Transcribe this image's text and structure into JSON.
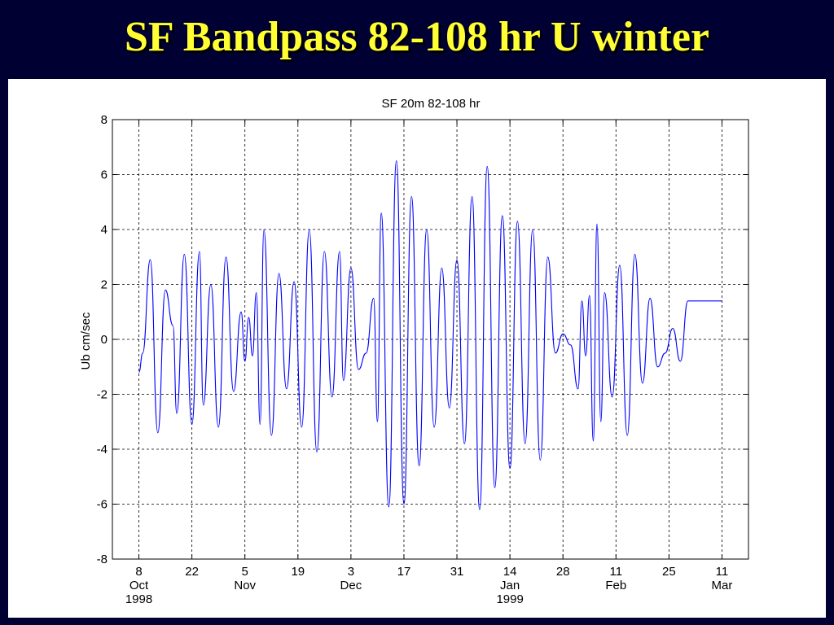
{
  "slide": {
    "title": "SF Bandpass 82-108 hr U winter"
  },
  "chart_data": {
    "type": "line",
    "title": "SF 20m 82-108 hr",
    "xlabel": "",
    "ylabel": "Ub cm/sec",
    "ylim": [
      -8,
      8
    ],
    "xlim": [
      "1998-10-08",
      "1999-03-11"
    ],
    "grid": true,
    "color": "#0000ff",
    "y_ticks": [
      -8,
      -6,
      -4,
      -2,
      0,
      2,
      4,
      6,
      8
    ],
    "x_ticks": [
      {
        "date": "1998-10-08",
        "day": "8",
        "month": "Oct",
        "year": "1998"
      },
      {
        "date": "1998-10-22",
        "day": "22",
        "month": "",
        "year": ""
      },
      {
        "date": "1998-11-05",
        "day": "5",
        "month": "Nov",
        "year": ""
      },
      {
        "date": "1998-11-19",
        "day": "19",
        "month": "",
        "year": ""
      },
      {
        "date": "1998-12-03",
        "day": "3",
        "month": "Dec",
        "year": ""
      },
      {
        "date": "1998-12-17",
        "day": "17",
        "month": "",
        "year": ""
      },
      {
        "date": "1998-12-31",
        "day": "31",
        "month": "",
        "year": ""
      },
      {
        "date": "1999-01-14",
        "day": "14",
        "month": "Jan",
        "year": "1999"
      },
      {
        "date": "1999-01-28",
        "day": "28",
        "month": "",
        "year": ""
      },
      {
        "date": "1999-02-11",
        "day": "11",
        "month": "Feb",
        "year": ""
      },
      {
        "date": "1999-02-25",
        "day": "25",
        "month": "",
        "year": ""
      },
      {
        "date": "1999-03-11",
        "day": "11",
        "month": "Mar",
        "year": ""
      }
    ],
    "series": [
      {
        "x": [
          "1998-10-08",
          "1998-10-09",
          "1998-10-11",
          "1998-10-13",
          "1998-10-15",
          "1998-10-17",
          "1998-10-18",
          "1998-10-20",
          "1998-10-22",
          "1998-10-24",
          "1998-10-25",
          "1998-10-27",
          "1998-10-29",
          "1998-10-31",
          "1998-11-02",
          "1998-11-04",
          "1998-11-05",
          "1998-11-06",
          "1998-11-07",
          "1998-11-08",
          "1998-11-09",
          "1998-11-10",
          "1998-11-12",
          "1998-11-14",
          "1998-11-16",
          "1998-11-18",
          "1998-11-20",
          "1998-11-22",
          "1998-11-24",
          "1998-11-26",
          "1998-11-28",
          "1998-11-30",
          "1998-12-01",
          "1998-12-03",
          "1998-12-05",
          "1998-12-07",
          "1998-12-09",
          "1998-12-10",
          "1998-12-11",
          "1998-12-13",
          "1998-12-15",
          "1998-12-17",
          "1998-12-19",
          "1998-12-21",
          "1998-12-23",
          "1998-12-25",
          "1998-12-27",
          "1998-12-29",
          "1998-12-31",
          "1999-01-02",
          "1999-01-04",
          "1999-01-06",
          "1999-01-08",
          "1999-01-10",
          "1999-01-12",
          "1999-01-14",
          "1999-01-16",
          "1999-01-18",
          "1999-01-20",
          "1999-01-22",
          "1999-01-24",
          "1999-01-26",
          "1999-01-28",
          "1999-01-30",
          "1999-02-01",
          "1999-02-02",
          "1999-02-03",
          "1999-02-04",
          "1999-02-05",
          "1999-02-06",
          "1999-02-07",
          "1999-02-08",
          "1999-02-10",
          "1999-02-12",
          "1999-02-14",
          "1999-02-16",
          "1999-02-18",
          "1999-02-20",
          "1999-02-22",
          "1999-02-24",
          "1999-02-26",
          "1999-02-28",
          "1999-03-02",
          "1999-03-03",
          "1999-03-04",
          "1999-03-05",
          "1999-03-06",
          "1999-03-07",
          "1999-03-08",
          "1999-03-09",
          "1999-03-10",
          "1999-03-11"
        ],
        "y": [
          -1.2,
          -0.5,
          2.9,
          -3.4,
          1.8,
          0.5,
          -2.7,
          3.1,
          -3.1,
          3.2,
          -2.4,
          2.0,
          -3.2,
          3.0,
          -1.9,
          1.0,
          -0.8,
          0.8,
          -0.6,
          1.7,
          -3.1,
          4.0,
          -3.5,
          2.4,
          -1.8,
          2.1,
          -3.2,
          4.0,
          -4.1,
          3.2,
          -2.1,
          3.2,
          -1.5,
          2.6,
          -1.1,
          -0.5,
          1.5,
          -3.0,
          4.6,
          -6.1,
          6.5,
          -6.0,
          5.2,
          -4.6,
          4.0,
          -3.2,
          2.6,
          -2.5,
          2.9,
          -3.8,
          5.2,
          -6.2,
          6.3,
          -5.4,
          4.5,
          -4.7,
          4.3,
          -3.8,
          4.0,
          -4.4,
          3.0,
          -0.5,
          0.2,
          -0.2,
          -1.8,
          1.4,
          -0.6,
          1.6,
          -3.7,
          4.2,
          -3.0,
          1.7,
          -2.1,
          2.7,
          -3.5,
          3.1,
          -1.6,
          1.5,
          -1.0,
          -0.5,
          0.4,
          -0.8,
          1.4,
          1.4,
          1.4,
          1.4,
          1.4,
          1.4,
          1.4,
          1.4,
          1.4,
          1.4
        ]
      }
    ]
  }
}
